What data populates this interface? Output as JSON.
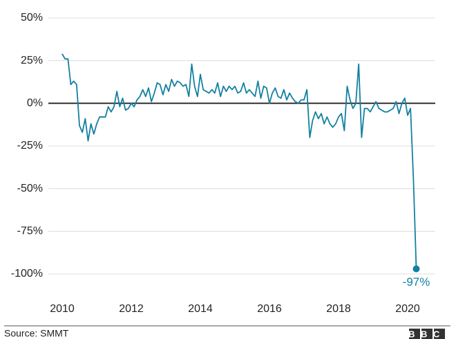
{
  "chart_data": {
    "type": "line",
    "x": [
      2010,
      2010.083,
      2010.167,
      2010.25,
      2010.333,
      2010.417,
      2010.5,
      2010.583,
      2010.667,
      2010.75,
      2010.833,
      2010.917,
      2011,
      2011.083,
      2011.167,
      2011.25,
      2011.333,
      2011.417,
      2011.5,
      2011.583,
      2011.667,
      2011.75,
      2011.833,
      2011.917,
      2012,
      2012.083,
      2012.167,
      2012.25,
      2012.333,
      2012.417,
      2012.5,
      2012.583,
      2012.667,
      2012.75,
      2012.833,
      2012.917,
      2013,
      2013.083,
      2013.167,
      2013.25,
      2013.333,
      2013.417,
      2013.5,
      2013.583,
      2013.667,
      2013.75,
      2013.833,
      2013.917,
      2014,
      2014.083,
      2014.167,
      2014.25,
      2014.333,
      2014.417,
      2014.5,
      2014.583,
      2014.667,
      2014.75,
      2014.833,
      2014.917,
      2015,
      2015.083,
      2015.167,
      2015.25,
      2015.333,
      2015.417,
      2015.5,
      2015.583,
      2015.667,
      2015.75,
      2015.833,
      2015.917,
      2016,
      2016.083,
      2016.167,
      2016.25,
      2016.333,
      2016.417,
      2016.5,
      2016.583,
      2016.667,
      2016.75,
      2016.833,
      2016.917,
      2017,
      2017.083,
      2017.167,
      2017.25,
      2017.333,
      2017.417,
      2017.5,
      2017.583,
      2017.667,
      2017.75,
      2017.833,
      2017.917,
      2018,
      2018.083,
      2018.167,
      2018.25,
      2018.333,
      2018.417,
      2018.5,
      2018.583,
      2018.667,
      2018.75,
      2018.833,
      2018.917,
      2019,
      2019.083,
      2019.167,
      2019.25,
      2019.333,
      2019.417,
      2019.5,
      2019.583,
      2019.667,
      2019.75,
      2019.833,
      2019.917,
      2020,
      2020.083,
      2020.167,
      2020.25
    ],
    "values": [
      29,
      26,
      26,
      11,
      13,
      11,
      -13,
      -17,
      -9,
      -22,
      -12,
      -18,
      -12,
      -8,
      -8,
      -8,
      -2,
      -5,
      -2,
      7,
      -2,
      3,
      -4,
      -3,
      0,
      -2,
      2,
      4,
      8,
      4,
      9,
      1,
      6,
      12,
      11,
      5,
      11,
      7,
      14,
      10,
      13,
      12,
      10,
      11,
      4,
      23,
      10,
      4,
      17,
      8,
      7,
      6,
      8,
      6,
      12,
      4,
      10,
      7,
      10,
      8,
      10,
      6,
      7,
      12,
      6,
      8,
      6,
      4,
      13,
      3,
      10,
      9,
      0,
      6,
      9,
      4,
      3,
      8,
      2,
      6,
      3,
      1,
      0,
      2,
      2,
      8,
      -20,
      -10,
      -5,
      -9,
      -6,
      -12,
      -8,
      -12,
      -14,
      -12,
      -8,
      -6,
      -16,
      10,
      2,
      -3,
      0,
      23,
      -20,
      -3,
      -3,
      -5,
      -2,
      1,
      -3,
      -4,
      -5,
      -5,
      -4,
      -3,
      1,
      -6,
      0,
      3,
      -7,
      -3,
      -44,
      -97
    ],
    "value_labels": [
      null,
      null,
      null,
      null,
      null,
      null,
      null,
      null,
      null,
      null,
      null,
      null,
      null,
      null,
      null,
      null,
      null,
      null,
      null,
      null,
      null,
      null,
      null,
      null,
      null,
      null,
      null,
      null,
      null,
      null,
      null,
      null,
      null,
      null,
      null,
      null,
      null,
      null,
      null,
      null,
      null,
      null,
      null,
      null,
      null,
      null,
      null,
      null,
      null,
      null,
      null,
      null,
      null,
      null,
      null,
      null,
      null,
      null,
      null,
      null,
      null,
      null,
      null,
      null,
      null,
      null,
      null,
      null,
      null,
      null,
      null,
      null,
      null,
      null,
      null,
      null,
      null,
      null,
      null,
      null,
      null,
      null,
      null,
      null,
      null,
      null,
      null,
      null,
      null,
      null,
      null,
      null,
      null,
      null,
      null,
      null,
      null,
      null,
      null,
      null,
      null,
      null,
      null,
      null,
      null,
      null,
      null,
      null,
      null,
      null,
      null,
      null,
      null,
      null,
      null,
      null,
      null,
      null,
      null,
      null,
      null,
      null,
      null,
      "-97%"
    ],
    "color": "#1380a1",
    "xlim": [
      2009.6,
      2020.8
    ],
    "xticks": [
      2010,
      2012,
      2014,
      2016,
      2018,
      2020
    ],
    "ylim": [
      -100,
      50
    ],
    "yticks": [
      {
        "value": 50,
        "label": "50%"
      },
      {
        "value": 25,
        "label": "25%"
      },
      {
        "value": 0,
        "label": "0%"
      },
      {
        "value": -25,
        "label": "-25%"
      },
      {
        "value": -50,
        "label": "-50%"
      },
      {
        "value": -75,
        "label": "-75%"
      },
      {
        "value": -100,
        "label": "-100%"
      }
    ],
    "grid": true,
    "source": "Source: SMMT",
    "logo": "BBC"
  }
}
